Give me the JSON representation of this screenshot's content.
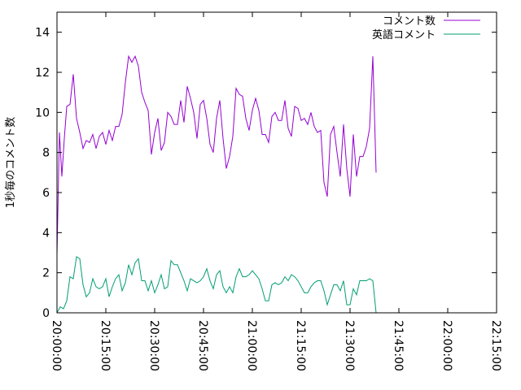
{
  "chart_data": {
    "type": "line",
    "ylabel": "1秒毎のコメント数",
    "xlabel": "",
    "title": "",
    "x_range": [
      "20:00:00",
      "22:15:00"
    ],
    "ylim": [
      0,
      15
    ],
    "y_ticks": [
      0,
      2,
      4,
      6,
      8,
      10,
      12,
      14
    ],
    "x_ticks": [
      "20:00:00",
      "20:15:00",
      "20:30:00",
      "20:45:00",
      "21:00:00",
      "21:15:00",
      "21:30:00",
      "21:45:00",
      "22:00:00",
      "22:15:00"
    ],
    "grid": false,
    "legend_position": "top-right",
    "series": [
      {
        "name": "コメント数",
        "color": "#9400d3",
        "points": [
          [
            "20:00:00",
            2.9
          ],
          [
            "20:00:45",
            9.0
          ],
          [
            "20:01:30",
            6.8
          ],
          [
            "20:02:15",
            8.7
          ],
          [
            "20:03:00",
            10.3
          ],
          [
            "20:04:00",
            10.4
          ],
          [
            "20:05:00",
            11.9
          ],
          [
            "20:06:00",
            9.7
          ],
          [
            "20:07:00",
            9.0
          ],
          [
            "20:08:00",
            8.2
          ],
          [
            "20:09:00",
            8.6
          ],
          [
            "20:10:00",
            8.5
          ],
          [
            "20:11:00",
            8.9
          ],
          [
            "20:12:00",
            8.2
          ],
          [
            "20:13:00",
            8.8
          ],
          [
            "20:14:00",
            9.0
          ],
          [
            "20:15:00",
            8.4
          ],
          [
            "20:16:00",
            9.1
          ],
          [
            "20:17:00",
            8.6
          ],
          [
            "20:18:00",
            9.3
          ],
          [
            "20:19:00",
            9.3
          ],
          [
            "20:20:00",
            9.9
          ],
          [
            "20:21:00",
            11.5
          ],
          [
            "20:22:00",
            12.8
          ],
          [
            "20:23:00",
            12.5
          ],
          [
            "20:24:00",
            12.8
          ],
          [
            "20:25:00",
            12.3
          ],
          [
            "20:26:00",
            11.0
          ],
          [
            "20:27:00",
            10.5
          ],
          [
            "20:28:00",
            10.1
          ],
          [
            "20:29:00",
            7.9
          ],
          [
            "20:30:00",
            9.0
          ],
          [
            "20:31:00",
            9.7
          ],
          [
            "20:32:00",
            8.1
          ],
          [
            "20:33:00",
            8.5
          ],
          [
            "20:34:00",
            10.0
          ],
          [
            "20:35:00",
            9.8
          ],
          [
            "20:36:00",
            9.4
          ],
          [
            "20:37:00",
            9.4
          ],
          [
            "20:38:00",
            10.6
          ],
          [
            "20:39:00",
            9.5
          ],
          [
            "20:40:00",
            11.3
          ],
          [
            "20:41:00",
            10.7
          ],
          [
            "20:42:00",
            10.0
          ],
          [
            "20:43:00",
            8.7
          ],
          [
            "20:44:00",
            10.4
          ],
          [
            "20:45:00",
            10.6
          ],
          [
            "20:46:00",
            9.7
          ],
          [
            "20:47:00",
            8.4
          ],
          [
            "20:48:00",
            8.0
          ],
          [
            "20:49:00",
            9.7
          ],
          [
            "20:50:00",
            10.6
          ],
          [
            "20:51:00",
            8.7
          ],
          [
            "20:52:00",
            7.2
          ],
          [
            "20:53:00",
            7.8
          ],
          [
            "20:54:00",
            8.8
          ],
          [
            "20:55:00",
            11.2
          ],
          [
            "20:56:00",
            10.9
          ],
          [
            "20:57:00",
            10.8
          ],
          [
            "20:58:00",
            9.7
          ],
          [
            "20:59:00",
            9.1
          ],
          [
            "21:00:00",
            10.1
          ],
          [
            "21:01:00",
            10.7
          ],
          [
            "21:02:00",
            10.1
          ],
          [
            "21:03:00",
            8.9
          ],
          [
            "21:04:00",
            8.9
          ],
          [
            "21:05:00",
            8.5
          ],
          [
            "21:06:00",
            9.8
          ],
          [
            "21:07:00",
            10.0
          ],
          [
            "21:08:00",
            9.6
          ],
          [
            "21:09:00",
            9.6
          ],
          [
            "21:10:00",
            10.6
          ],
          [
            "21:11:00",
            9.2
          ],
          [
            "21:12:00",
            8.8
          ],
          [
            "21:13:00",
            10.3
          ],
          [
            "21:14:00",
            10.2
          ],
          [
            "21:15:00",
            9.6
          ],
          [
            "21:16:00",
            9.7
          ],
          [
            "21:17:00",
            9.4
          ],
          [
            "21:18:00",
            10.0
          ],
          [
            "21:19:00",
            9.3
          ],
          [
            "21:20:00",
            9.0
          ],
          [
            "21:21:00",
            9.1
          ],
          [
            "21:22:00",
            6.5
          ],
          [
            "21:23:00",
            5.8
          ],
          [
            "21:24:00",
            8.9
          ],
          [
            "21:25:00",
            9.3
          ],
          [
            "21:26:00",
            8.0
          ],
          [
            "21:27:00",
            6.8
          ],
          [
            "21:28:00",
            9.4
          ],
          [
            "21:29:00",
            7.2
          ],
          [
            "21:30:00",
            5.8
          ],
          [
            "21:31:00",
            8.9
          ],
          [
            "21:32:00",
            6.8
          ],
          [
            "21:33:00",
            7.8
          ],
          [
            "21:34:00",
            7.8
          ],
          [
            "21:35:00",
            8.3
          ],
          [
            "21:36:00",
            9.2
          ],
          [
            "21:37:00",
            12.8
          ],
          [
            "21:38:00",
            7.0
          ]
        ]
      },
      {
        "name": "英語コメント",
        "color": "#009e73",
        "points": [
          [
            "20:00:00",
            0.0
          ],
          [
            "20:01:00",
            0.3
          ],
          [
            "20:02:00",
            0.2
          ],
          [
            "20:03:00",
            0.6
          ],
          [
            "20:04:00",
            1.8
          ],
          [
            "20:05:00",
            1.7
          ],
          [
            "20:06:00",
            2.8
          ],
          [
            "20:07:00",
            2.7
          ],
          [
            "20:08:00",
            1.4
          ],
          [
            "20:09:00",
            0.8
          ],
          [
            "20:10:00",
            1.0
          ],
          [
            "20:11:00",
            1.7
          ],
          [
            "20:12:00",
            1.3
          ],
          [
            "20:13:00",
            1.2
          ],
          [
            "20:14:00",
            1.3
          ],
          [
            "20:15:00",
            1.7
          ],
          [
            "20:16:00",
            0.8
          ],
          [
            "20:17:00",
            1.3
          ],
          [
            "20:18:00",
            1.7
          ],
          [
            "20:19:00",
            1.9
          ],
          [
            "20:20:00",
            1.1
          ],
          [
            "20:21:00",
            1.5
          ],
          [
            "20:22:00",
            2.4
          ],
          [
            "20:23:00",
            1.9
          ],
          [
            "20:24:00",
            2.5
          ],
          [
            "20:25:00",
            2.7
          ],
          [
            "20:26:00",
            1.6
          ],
          [
            "20:27:00",
            1.6
          ],
          [
            "20:28:00",
            1.1
          ],
          [
            "20:29:00",
            1.6
          ],
          [
            "20:30:00",
            1.0
          ],
          [
            "20:31:00",
            1.4
          ],
          [
            "20:32:00",
            1.9
          ],
          [
            "20:33:00",
            1.2
          ],
          [
            "20:34:00",
            1.3
          ],
          [
            "20:35:00",
            2.6
          ],
          [
            "20:36:00",
            2.4
          ],
          [
            "20:37:00",
            2.4
          ],
          [
            "20:38:00",
            2.0
          ],
          [
            "20:39:00",
            1.6
          ],
          [
            "20:40:00",
            1.1
          ],
          [
            "20:41:00",
            1.7
          ],
          [
            "20:42:00",
            1.6
          ],
          [
            "20:43:00",
            1.5
          ],
          [
            "20:44:00",
            1.6
          ],
          [
            "20:45:00",
            1.8
          ],
          [
            "20:46:00",
            2.2
          ],
          [
            "20:47:00",
            1.6
          ],
          [
            "20:48:00",
            1.2
          ],
          [
            "20:49:00",
            1.9
          ],
          [
            "20:50:00",
            2.1
          ],
          [
            "20:51:00",
            1.3
          ],
          [
            "20:52:00",
            1.0
          ],
          [
            "20:53:00",
            1.3
          ],
          [
            "20:54:00",
            1.0
          ],
          [
            "20:55:00",
            1.8
          ],
          [
            "20:56:00",
            2.2
          ],
          [
            "20:57:00",
            1.8
          ],
          [
            "20:58:00",
            1.8
          ],
          [
            "20:59:00",
            1.9
          ],
          [
            "21:00:00",
            2.1
          ],
          [
            "21:01:00",
            1.9
          ],
          [
            "21:02:00",
            1.7
          ],
          [
            "21:03:00",
            1.2
          ],
          [
            "21:04:00",
            0.6
          ],
          [
            "21:05:00",
            0.6
          ],
          [
            "21:06:00",
            1.4
          ],
          [
            "21:07:00",
            1.5
          ],
          [
            "21:08:00",
            1.4
          ],
          [
            "21:09:00",
            1.5
          ],
          [
            "21:10:00",
            1.8
          ],
          [
            "21:11:00",
            1.6
          ],
          [
            "21:12:00",
            1.9
          ],
          [
            "21:13:00",
            1.8
          ],
          [
            "21:14:00",
            1.6
          ],
          [
            "21:15:00",
            1.3
          ],
          [
            "21:16:00",
            1.0
          ],
          [
            "21:17:00",
            1.0
          ],
          [
            "21:18:00",
            1.3
          ],
          [
            "21:19:00",
            1.5
          ],
          [
            "21:20:00",
            1.6
          ],
          [
            "21:21:00",
            1.6
          ],
          [
            "21:22:00",
            1.1
          ],
          [
            "21:23:00",
            0.4
          ],
          [
            "21:24:00",
            0.9
          ],
          [
            "21:25:00",
            1.4
          ],
          [
            "21:26:00",
            1.4
          ],
          [
            "21:27:00",
            1.1
          ],
          [
            "21:28:00",
            1.6
          ],
          [
            "21:29:00",
            0.4
          ],
          [
            "21:30:00",
            0.4
          ],
          [
            "21:31:00",
            1.2
          ],
          [
            "21:32:00",
            0.9
          ],
          [
            "21:33:00",
            1.6
          ],
          [
            "21:34:00",
            1.6
          ],
          [
            "21:35:00",
            1.6
          ],
          [
            "21:36:00",
            1.7
          ],
          [
            "21:37:00",
            1.6
          ],
          [
            "21:38:00",
            0.0
          ]
        ]
      }
    ]
  }
}
